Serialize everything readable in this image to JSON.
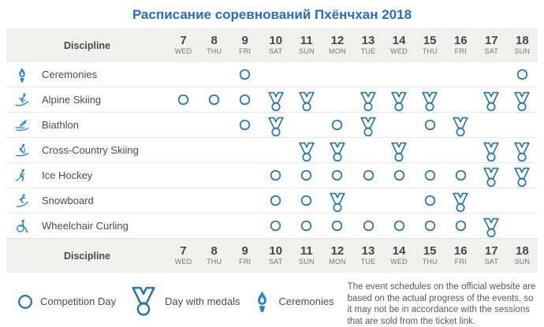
{
  "title": "Расписание соревнований Пхёнчхан 2018",
  "colors": {
    "title_blue": "#2a6cc3",
    "pictogram_blue": "#1e86d0",
    "marker_blue": "#2173ae",
    "header_bg": "#f0f0ee"
  },
  "table": {
    "discipline_header": "Discipline",
    "days": [
      {
        "num": "7",
        "dow": "WED"
      },
      {
        "num": "8",
        "dow": "THU"
      },
      {
        "num": "9",
        "dow": "FRI"
      },
      {
        "num": "10",
        "dow": "SAT"
      },
      {
        "num": "11",
        "dow": "SUN"
      },
      {
        "num": "12",
        "dow": "MON"
      },
      {
        "num": "13",
        "dow": "TUE"
      },
      {
        "num": "14",
        "dow": "WED"
      },
      {
        "num": "15",
        "dow": "THU"
      },
      {
        "num": "16",
        "dow": "FRI"
      },
      {
        "num": "17",
        "dow": "SAT"
      },
      {
        "num": "18",
        "dow": "SUN"
      }
    ],
    "rows": [
      {
        "discipline": "Ceremonies",
        "icon": "torch-icon",
        "cells": [
          "",
          "",
          "circle",
          "",
          "",
          "",
          "",
          "",
          "",
          "",
          "",
          "circle"
        ]
      },
      {
        "discipline": "Alpine Skiing",
        "icon": "alpine-skiing-icon",
        "cells": [
          "circle",
          "circle",
          "circle",
          "medal",
          "medal",
          "",
          "medal",
          "medal",
          "medal",
          "",
          "medal",
          "medal"
        ]
      },
      {
        "discipline": "Biathlon",
        "icon": "biathlon-icon",
        "cells": [
          "",
          "",
          "circle",
          "medal",
          "",
          "circle",
          "medal",
          "",
          "circle",
          "medal",
          "",
          ""
        ]
      },
      {
        "discipline": "Cross-Country Skiing",
        "icon": "cross-country-skiing-icon",
        "cells": [
          "",
          "",
          "",
          "",
          "medal",
          "medal",
          "",
          "medal",
          "",
          "",
          "medal",
          "medal"
        ]
      },
      {
        "discipline": "Ice Hockey",
        "icon": "ice-hockey-icon",
        "cells": [
          "",
          "",
          "",
          "circle",
          "circle",
          "circle",
          "circle",
          "circle",
          "circle",
          "circle",
          "medal",
          "medal"
        ]
      },
      {
        "discipline": "Snowboard",
        "icon": "snowboard-icon",
        "cells": [
          "",
          "",
          "",
          "circle",
          "circle",
          "medal",
          "",
          "",
          "circle",
          "medal",
          "",
          ""
        ]
      },
      {
        "discipline": "Wheelchair Curling",
        "icon": "wheelchair-curling-icon",
        "cells": [
          "",
          "",
          "",
          "circle",
          "circle",
          "circle",
          "circle",
          "circle",
          "circle",
          "circle",
          "medal",
          ""
        ]
      }
    ]
  },
  "legend": [
    {
      "icon": "circle",
      "label": "Competition Day"
    },
    {
      "icon": "medal",
      "label": "Day with medals"
    },
    {
      "icon": "torch",
      "label": "Ceremonies"
    }
  ],
  "note": "The event schedules on the official website are based on the actual progress of the events, so it may not be in accordance with the sessions that are sold from the ticket link."
}
